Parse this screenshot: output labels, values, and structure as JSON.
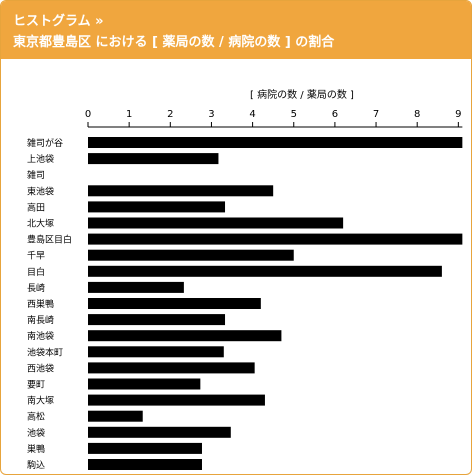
{
  "header": {
    "kicker": "ヒストグラム »",
    "title": "東京都豊島区 における [ 薬局の数 / 病院の数 ] の割合"
  },
  "colors": {
    "accent": "#f0a63e",
    "bar": "#000000"
  },
  "chart_data": {
    "type": "bar",
    "orientation": "horizontal",
    "title": "",
    "xlabel": "[ 病院の数 / 薬局の数 ]",
    "ylabel": "",
    "xlim": [
      0,
      9
    ],
    "ticks": [
      0,
      1,
      2,
      3,
      4,
      5,
      6,
      7,
      8,
      9
    ],
    "grid": false,
    "categories": [
      "雑司が谷",
      "上池袋",
      "雑司",
      "東池袋",
      "高田",
      "北大塚",
      "豊島区目白",
      "千早",
      "目白",
      "長崎",
      "西巣鴨",
      "南長崎",
      "南池袋",
      "池袋本町",
      "西池袋",
      "要町",
      "南大塚",
      "高松",
      "池袋",
      "巣鴨",
      "駒込"
    ],
    "values": [
      9.2,
      3.17,
      0,
      4.5,
      3.33,
      6.2,
      9.2,
      5.0,
      8.6,
      2.33,
      4.2,
      3.33,
      4.7,
      3.3,
      4.05,
      2.73,
      4.3,
      1.33,
      3.47,
      2.77,
      2.77
    ]
  }
}
